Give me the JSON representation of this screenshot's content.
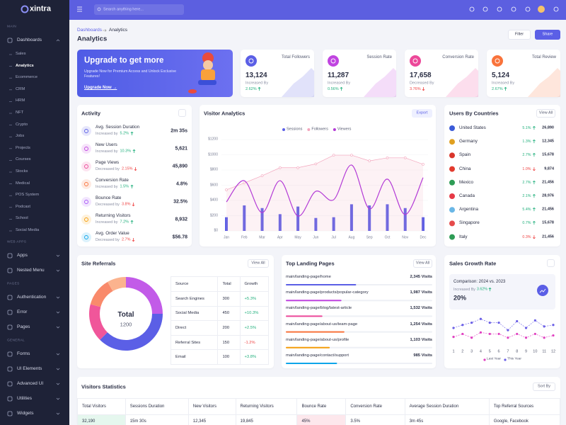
{
  "sidebar": {
    "brand": "xintra",
    "sections": [
      {
        "heading": "MAIN",
        "items": [
          "Dashboards"
        ]
      },
      {
        "heading": "WEB APPS",
        "items": [
          "Apps",
          "Nested Menu"
        ]
      },
      {
        "heading": "PAGES",
        "items": [
          "Authentication",
          "Error",
          "Pages"
        ]
      },
      {
        "heading": "GENERAL",
        "items": [
          "Forms",
          "UI Elements",
          "Advanced UI",
          "Utilities",
          "Widgets"
        ]
      }
    ],
    "submenu": [
      "Sales",
      "Analytics",
      "Ecommerce",
      "CRM",
      "HRM",
      "NFT",
      "Crypto",
      "Jobs",
      "Projects",
      "Courses",
      "Stocks",
      "Medical",
      "POS System",
      "Podcast",
      "School",
      "Social Media"
    ],
    "active_submenu": 1
  },
  "header": {
    "search_placeholder": "Search anything here..."
  },
  "page": {
    "breadcrumb": [
      "Dashboards",
      "Analytics"
    ],
    "title": "Analytics",
    "buttons": [
      "Filter",
      "Share"
    ]
  },
  "upgrade": {
    "title": "Upgrade to get more",
    "text": "Upgrade Now for Premium Access and Unlock Exclusive Features!",
    "link": "Upgrade Now →"
  },
  "stats": [
    {
      "label": "Total Followers",
      "value": "13,124",
      "note": "Increased By",
      "change": "2.62%",
      "trend": "up",
      "color": "#5b5fe6"
    },
    {
      "label": "Session Rate",
      "value": "11,287",
      "note": "Increased By",
      "change": "0.56%",
      "trend": "up",
      "color": "#c044e0"
    },
    {
      "label": "Conversion Rate",
      "value": "17,658",
      "note": "Decreased By",
      "change": "3.76%",
      "trend": "down",
      "color": "#ec4899"
    },
    {
      "label": "Total Review",
      "value": "5,124",
      "note": "Increased By",
      "change": "2.67%",
      "trend": "up",
      "color": "#f9733b"
    }
  ],
  "activity": {
    "title": "Activity",
    "rows": [
      {
        "label": "Avg. Session Duration",
        "note": "Increased by",
        "change": "5.2%",
        "trend": "up",
        "value": "2m 35s",
        "color": "#5b5fe6"
      },
      {
        "label": "New Users",
        "note": "Increased by",
        "change": "10.3%",
        "trend": "up",
        "value": "5,621",
        "color": "#c044e0"
      },
      {
        "label": "Page Views",
        "note": "Decreased by",
        "change": "2.15%",
        "trend": "down",
        "value": "45,890",
        "color": "#ec4899"
      },
      {
        "label": "Conversion Rate",
        "note": "Increased by",
        "change": "1.5%",
        "trend": "up",
        "value": "4.8%",
        "color": "#f9733b"
      },
      {
        "label": "Bounce Rate",
        "note": "Decreased by",
        "change": "3.8%",
        "trend": "down",
        "value": "32.5%",
        "color": "#a855f7"
      },
      {
        "label": "Returning Visitors",
        "note": "Increased by",
        "change": "7.2%",
        "trend": "up",
        "value": "8,932",
        "color": "#f59e0b"
      },
      {
        "label": "Avg. Order Value",
        "note": "Decreased by",
        "change": "2.7%",
        "trend": "down",
        "value": "$56.78",
        "color": "#0ea5e9"
      }
    ]
  },
  "visitor_analytics": {
    "type": "bar-line",
    "title": "Visitor Analytics",
    "button": "Export",
    "categories": [
      "Jan",
      "Feb",
      "Mar",
      "Apr",
      "May",
      "Jun",
      "Jul",
      "Aug",
      "Sep",
      "Oct",
      "Nov",
      "Dec"
    ],
    "ylim": [
      0,
      1200
    ],
    "yticks": [
      {
        "value": 0,
        "label": "$0"
      },
      {
        "value": 200,
        "label": "$200"
      },
      {
        "value": 400,
        "label": "$400"
      },
      {
        "value": 600,
        "label": "$600"
      },
      {
        "value": 800,
        "label": "$800"
      },
      {
        "value": 1000,
        "label": "$1000"
      },
      {
        "value": 1200,
        "label": "$1200"
      }
    ],
    "series": [
      {
        "name": "Sessions",
        "style": "bar",
        "color": "#5b5fe6",
        "values": [
          180,
          335,
          300,
          220,
          320,
          170,
          180,
          350,
          335,
          350,
          300,
          180
        ]
      },
      {
        "name": "Followers",
        "style": "area",
        "color": "#f3a6bd",
        "values": [
          540,
          630,
          725,
          830,
          830,
          880,
          995,
          995,
          920,
          960,
          960,
          875
        ]
      },
      {
        "name": "Viewers",
        "style": "smooth",
        "color": "#b33ad6",
        "values": [
          380,
          660,
          240,
          660,
          195,
          520,
          410,
          865,
          290,
          680,
          215,
          700
        ]
      }
    ]
  },
  "countries": {
    "title": "Users By Countries",
    "button": "View All",
    "rows": [
      {
        "country": "United States",
        "change": "5.1%",
        "trend": "up",
        "value": "26,890"
      },
      {
        "country": "Germany",
        "change": "1.3%",
        "trend": "up",
        "value": "12,345"
      },
      {
        "country": "Spain",
        "change": "2.7%",
        "trend": "up",
        "value": "15,678"
      },
      {
        "country": "China",
        "change": "1.0%",
        "trend": "down",
        "value": "9,874"
      },
      {
        "country": "Mexico",
        "change": "2.7%",
        "trend": "up",
        "value": "21,456"
      },
      {
        "country": "Canada",
        "change": "2.1%",
        "trend": "up",
        "value": "28,976"
      },
      {
        "country": "Argentina",
        "change": "5.4%",
        "trend": "up",
        "value": "21,456"
      },
      {
        "country": "Singapore",
        "change": "0.7%",
        "trend": "up",
        "value": "15,678"
      },
      {
        "country": "Italy",
        "change": "0.3%",
        "trend": "down",
        "value": "21,456"
      }
    ]
  },
  "referrals": {
    "type": "donut",
    "title": "Site Referrals",
    "button": "View All",
    "center_label": "Total",
    "total": 1200,
    "columns": [
      "Source",
      "Total",
      "Growth"
    ],
    "rows": [
      {
        "source": "Search Engines",
        "total": 300,
        "growth": "+5.3%",
        "color": "#c25be8"
      },
      {
        "source": "Social Media",
        "total": 450,
        "growth": "+10.3%",
        "color": "#5b5fe6"
      },
      {
        "source": "Direct",
        "total": 200,
        "growth": "+2.5%",
        "color": "#f0569a"
      },
      {
        "source": "Referral Sites",
        "total": 150,
        "growth": "-1.2%",
        "color": "#f98a6b"
      },
      {
        "source": "Email",
        "total": 100,
        "growth": "+3.8%",
        "color": "#fbb38e"
      }
    ]
  },
  "landing": {
    "title": "Top Landing Pages",
    "button": "View All",
    "rows": [
      {
        "path": "main/landing-page/home",
        "visits": "2,345 Visits",
        "color": "#5b5fe6"
      },
      {
        "path": "main/landing-page/products/popular-category",
        "visits": "1,987 Visits",
        "color": "#c044e0"
      },
      {
        "path": "main/landing-page/blog/latest-article",
        "visits": "1,532 Visits",
        "color": "#ec4899"
      },
      {
        "path": "main/landing-page/about-us/team-page",
        "visits": "1,254 Visits",
        "color": "#f9733b"
      },
      {
        "path": "main/landing-page/about-us/profile",
        "visits": "1,103 Visits",
        "color": "#f59e0b"
      },
      {
        "path": "main/landing-page/contact/support",
        "visits": "985 Visits",
        "color": "#0ea5e9"
      }
    ]
  },
  "sales_growth": {
    "type": "line",
    "title": "Sales Growth Rate",
    "comparison": "Comparison: 2024 vs. 2023",
    "note": "Increased By",
    "change": "3.62%",
    "value": "20%",
    "x": [
      1,
      2,
      3,
      4,
      5,
      6,
      7,
      8,
      9,
      10,
      11,
      12
    ],
    "xlim": [
      1,
      12
    ],
    "xticks": [
      1,
      2,
      3,
      4,
      5,
      6,
      7,
      8,
      9,
      10,
      11,
      12
    ],
    "ylim": [
      0,
      35
    ],
    "series": [
      {
        "name": "Last Year",
        "color": "#e040c0",
        "values": [
          6,
          10,
          5,
          12,
          10,
          10,
          5,
          10,
          5,
          10,
          5,
          8
        ]
      },
      {
        "name": "This Year",
        "color": "#6a5fe6",
        "values": [
          18,
          22,
          25,
          30,
          25,
          25,
          15,
          27,
          18,
          28,
          20,
          22
        ]
      }
    ]
  },
  "visitors_stats": {
    "title": "Visitors Statistics",
    "button": "Sort By",
    "columns": [
      "Total Visitors",
      "Sessions Duration",
      "New Visitors",
      "Returning Visitors",
      "Bounce Rate",
      "Conversion Rate",
      "Average Session Duration",
      "Top Referral Sources"
    ],
    "row": [
      "32,190",
      "15m 30s",
      "12,345",
      "19,845",
      "45%",
      "3.5%",
      "3m 45s",
      "Google, Facebook"
    ]
  }
}
